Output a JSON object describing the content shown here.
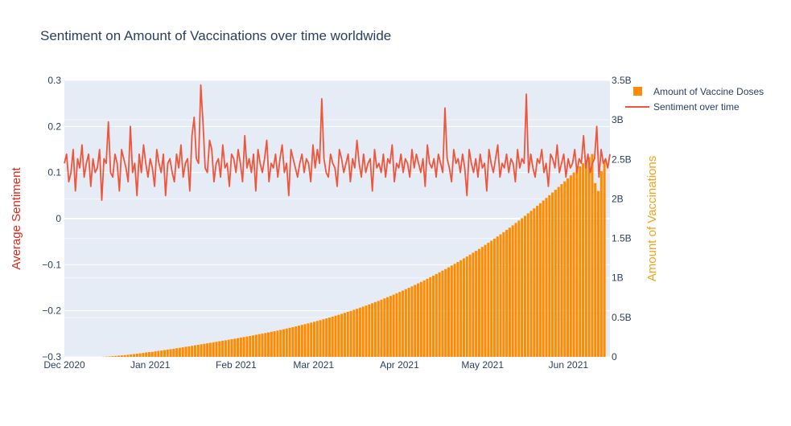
{
  "chart_data": {
    "type": "bar+line",
    "title": "Sentiment on Amount of Vaccinations over time worldwide",
    "x_axis": {
      "type": "date",
      "range": [
        "2020-12-01",
        "2021-06-16"
      ],
      "tick_labels": [
        "Dec 2020",
        "Jan 2021",
        "Feb 2021",
        "Mar 2021",
        "Apr 2021",
        "May 2021",
        "Jun 2021"
      ],
      "tick_dates": [
        "2020-12-01",
        "2021-01-01",
        "2021-02-01",
        "2021-03-01",
        "2021-04-01",
        "2021-05-01",
        "2021-06-01"
      ]
    },
    "y_left": {
      "label": "Average Sentiment",
      "label_color": "#e3271c",
      "range": [
        -0.3,
        0.3
      ],
      "ticks": [
        -0.3,
        -0.2,
        -0.1,
        0,
        0.1,
        0.2,
        0.3
      ],
      "tick_labels": [
        "−0.3",
        "−0.2",
        "−0.1",
        "0",
        "0.1",
        "0.2",
        "0.3"
      ]
    },
    "y_right": {
      "label": "Amount of Vaccinations",
      "label_color": "#f2a31c",
      "range": [
        0,
        3500000000
      ],
      "ticks": [
        0,
        500000000,
        1000000000,
        1500000000,
        2000000000,
        2500000000,
        3000000000,
        3500000000
      ],
      "tick_labels": [
        "0",
        "0.5B",
        "1B",
        "1.5B",
        "2B",
        "2.5B",
        "3B",
        "3.5B"
      ]
    },
    "grid": true,
    "legend_position": "top-right",
    "series": [
      {
        "name": "Amount of Vaccine Doses",
        "kind": "bar",
        "axis": "right",
        "color": "#ff8c00",
        "date_range": [
          "2020-12-14",
          "2021-06-14"
        ],
        "values": [
          0,
          2000000,
          4000000,
          6000000,
          9000000,
          12000000,
          15000000,
          19000000,
          22000000,
          26000000,
          30000000,
          35000000,
          40000000,
          45000000,
          50000000,
          56000000,
          60000000,
          63000000,
          70000000,
          76000000,
          80000000,
          86000000,
          92000000,
          97000000,
          103000000,
          110000000,
          115000000,
          121000000,
          128000000,
          133000000,
          140000000,
          147000000,
          153000000,
          160000000,
          166000000,
          172000000,
          178000000,
          185000000,
          191000000,
          198000000,
          205000000,
          210000000,
          217000000,
          224000000,
          230000000,
          237000000,
          245000000,
          251000000,
          258000000,
          265000000,
          272000000,
          280000000,
          288000000,
          295000000,
          302000000,
          310000000,
          318000000,
          325000000,
          333000000,
          342000000,
          350000000,
          359000000,
          368000000,
          377000000,
          386000000,
          395000000,
          405000000,
          414000000,
          424000000,
          434000000,
          444000000,
          455000000,
          465000000,
          476000000,
          487000000,
          498000000,
          509000000,
          521000000,
          533000000,
          545000000,
          557000000,
          570000000,
          583000000,
          596000000,
          609000000,
          623000000,
          636000000,
          650000000,
          664000000,
          679000000,
          694000000,
          708000000,
          724000000,
          740000000,
          756000000,
          772000000,
          788000000,
          805000000,
          822000000,
          839000000,
          857000000,
          875000000,
          893000000,
          911000000,
          930000000,
          949000000,
          968000000,
          988000000,
          1008000000,
          1028000000,
          1049000000,
          1070000000,
          1091000000,
          1112000000,
          1134000000,
          1156000000,
          1178000000,
          1201000000,
          1224000000,
          1247000000,
          1270000000,
          1294000000,
          1318000000,
          1342000000,
          1367000000,
          1392000000,
          1418000000,
          1444000000,
          1470000000,
          1497000000,
          1524000000,
          1551000000,
          1579000000,
          1607000000,
          1636000000,
          1665000000,
          1695000000,
          1725000000,
          1755000000,
          1786000000,
          1817000000,
          1848000000,
          1880000000,
          1912000000,
          1945000000,
          1978000000,
          2012000000,
          2046000000,
          2081000000,
          2116000000,
          2151000000,
          2187000000,
          2223000000,
          2260000000,
          2297000000,
          2335000000,
          2373000000,
          2411000000,
          2450000000,
          2489000000,
          2529000000,
          2569000000,
          2200000000,
          2100000000,
          2350000000,
          2480000000
        ],
        "notes": "approximate cumulative doses read from chart"
      },
      {
        "name": "Sentiment over time",
        "kind": "line",
        "axis": "left",
        "color": "#ef553b",
        "date_range": [
          "2020-12-01",
          "2021-06-16"
        ],
        "values": [
          0.12,
          0.14,
          0.08,
          0.1,
          0.15,
          0.06,
          0.13,
          0.11,
          0.16,
          0.09,
          0.12,
          0.14,
          0.07,
          0.13,
          0.1,
          0.11,
          0.15,
          0.04,
          0.13,
          0.12,
          0.21,
          0.1,
          0.09,
          0.14,
          0.12,
          0.06,
          0.15,
          0.13,
          0.11,
          0.08,
          0.2,
          0.1,
          0.12,
          0.05,
          0.14,
          0.1,
          0.16,
          0.12,
          0.09,
          0.13,
          0.11,
          0.07,
          0.15,
          0.12,
          0.1,
          0.14,
          0.05,
          0.12,
          0.13,
          0.1,
          0.08,
          0.14,
          0.11,
          0.16,
          0.09,
          0.12,
          0.13,
          0.06,
          0.18,
          0.22,
          0.13,
          0.12,
          0.29,
          0.21,
          0.11,
          0.1,
          0.17,
          0.15,
          0.08,
          0.12,
          0.13,
          0.09,
          0.16,
          0.11,
          0.12,
          0.07,
          0.14,
          0.13,
          0.1,
          0.15,
          0.12,
          0.08,
          0.18,
          0.11,
          0.13,
          0.1,
          0.14,
          0.06,
          0.15,
          0.12,
          0.1,
          0.13,
          0.17,
          0.08,
          0.12,
          0.11,
          0.14,
          0.09,
          0.13,
          0.16,
          0.1,
          0.12,
          0.05,
          0.15,
          0.13,
          0.11,
          0.09,
          0.12,
          0.14,
          0.1,
          0.13,
          0.12,
          0.08,
          0.16,
          0.11,
          0.15,
          0.12,
          0.26,
          0.13,
          0.1,
          0.09,
          0.14,
          0.12,
          0.11,
          0.07,
          0.15,
          0.13,
          0.1,
          0.12,
          0.14,
          0.08,
          0.13,
          0.11,
          0.17,
          0.12,
          0.09,
          0.14,
          0.1,
          0.12,
          0.13,
          0.06,
          0.15,
          0.11,
          0.12,
          0.1,
          0.14,
          0.09,
          0.13,
          0.12,
          0.16,
          0.08,
          0.12,
          0.11,
          0.14,
          0.1,
          0.13,
          0.12,
          0.09,
          0.15,
          0.11,
          0.14,
          0.12,
          0.1,
          0.13,
          0.07,
          0.16,
          0.12,
          0.11,
          0.13,
          0.09,
          0.14,
          0.12,
          0.1,
          0.24,
          0.13,
          0.11,
          0.08,
          0.15,
          0.12,
          0.13,
          0.1,
          0.14,
          0.11,
          0.05,
          0.15,
          0.12,
          0.1,
          0.13,
          0.09,
          0.14,
          0.11,
          0.12,
          0.06,
          0.15,
          0.12,
          0.1,
          0.13,
          0.16,
          0.09,
          0.12,
          0.11,
          0.14,
          0.1,
          0.13,
          0.12,
          0.08,
          0.15,
          0.11,
          0.13,
          0.12,
          0.27,
          0.1,
          0.14,
          0.11,
          0.09,
          0.13,
          0.12,
          0.15,
          0.1,
          0.12,
          0.07,
          0.14,
          0.13,
          0.11,
          0.16,
          0.1,
          0.12,
          0.14,
          0.09,
          0.13,
          0.11,
          0.12,
          0.15,
          0.1,
          0.13,
          0.12,
          0.18,
          0.11,
          0.14,
          0.1,
          0.12,
          0.13,
          0.2,
          0.09,
          0.15,
          0.12,
          0.13,
          0.11,
          0.14
        ],
        "notes": "approximate daily average sentiment"
      }
    ]
  }
}
